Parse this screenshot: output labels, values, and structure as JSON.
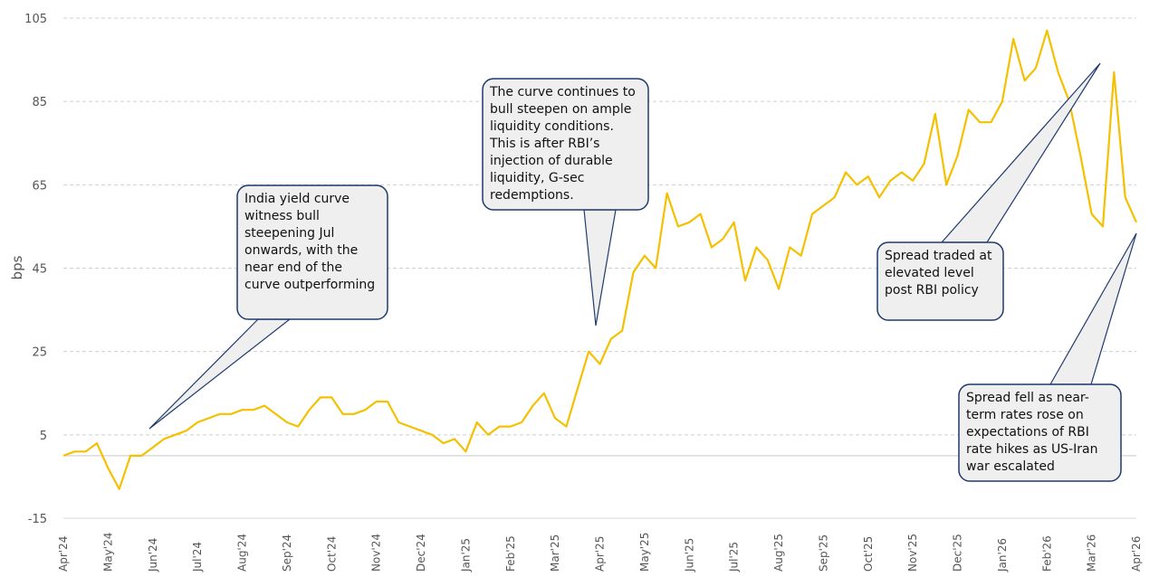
{
  "chart_data": {
    "type": "line",
    "y_label": "bps",
    "categories": [
      "Apr'24",
      null,
      null,
      null,
      "May'24",
      null,
      null,
      null,
      "Jun'24",
      null,
      null,
      null,
      "Jul'24",
      null,
      null,
      null,
      "Aug'24",
      null,
      null,
      null,
      "Sep'24",
      null,
      null,
      null,
      "Oct'24",
      null,
      null,
      null,
      "Nov'24",
      null,
      null,
      null,
      "Dec'24",
      null,
      null,
      null,
      "Jan'25",
      null,
      null,
      null,
      "Feb'25",
      null,
      null,
      null,
      "Mar'25",
      null,
      null,
      null,
      "Apr'25",
      null,
      null,
      null,
      "May'25",
      null,
      null,
      null,
      "Jun'25",
      null,
      null,
      null,
      "Jul'25",
      null,
      null,
      null,
      "Aug'25",
      null,
      null,
      null,
      "Sep'25",
      null,
      null,
      null,
      "Oct'25",
      null,
      null,
      null,
      "Nov'25",
      null,
      null,
      null,
      "Dec'25",
      null,
      null,
      null,
      "Jan'26",
      null,
      null,
      null,
      "Feb'26",
      null,
      null,
      null,
      "Mar'26",
      null,
      null,
      null,
      "Apr'26"
    ],
    "values": [
      0,
      1,
      1,
      3,
      -3,
      -8,
      0,
      0,
      2,
      4,
      5,
      6,
      8,
      9,
      10,
      10,
      11,
      11,
      12,
      10,
      8,
      7,
      11,
      14,
      14,
      10,
      10,
      11,
      13,
      13,
      8,
      7,
      6,
      5,
      3,
      4,
      1,
      8,
      5,
      7,
      7,
      8,
      12,
      15,
      9,
      7,
      16,
      25,
      22,
      28,
      30,
      44,
      48,
      45,
      63,
      55,
      56,
      58,
      50,
      52,
      56,
      42,
      50,
      47,
      40,
      50,
      48,
      58,
      60,
      62,
      68,
      65,
      67,
      62,
      66,
      68,
      66,
      70,
      82,
      65,
      72,
      83,
      80,
      80,
      85,
      100,
      90,
      93,
      102,
      92,
      85,
      72,
      58,
      55,
      92,
      62,
      56
    ],
    "color": "#f5c000",
    "ylim": [
      -15,
      105
    ],
    "yticks": [
      -15,
      5,
      25,
      45,
      65,
      85,
      105
    ],
    "grid": true,
    "annotations": [
      "India yield curve witness bull steepening Jul onwards, with the near end of the curve outperforming",
      "The curve continues to bull steepen on ample liquidity conditions. This is after RBI’s injection of durable liquidity, G-sec redemptions.",
      "Spread traded at elevated level post RBI policy",
      "Spread fell as near-term rates rose on expectations of RBI rate hikes as US-Iran war escalated"
    ]
  }
}
